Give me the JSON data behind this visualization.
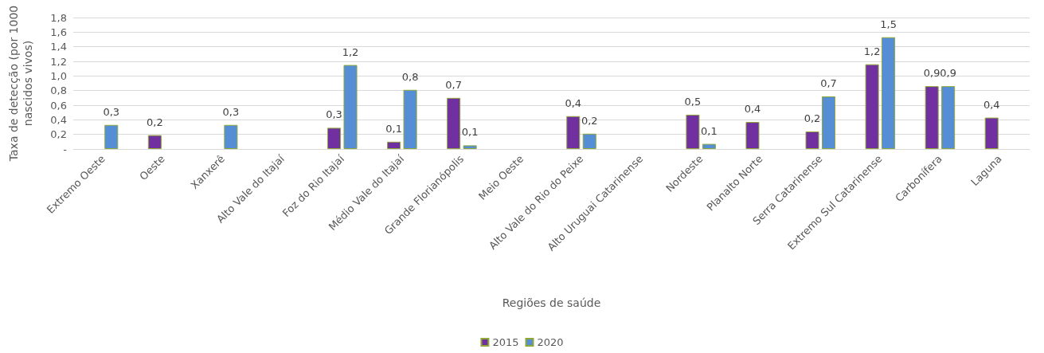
{
  "chart_data": {
    "type": "bar",
    "categories": [
      "Extremo Oeste",
      "Oeste",
      "Xanxerê",
      "Alto Vale do Itajaí",
      "Foz do Rio Itajaí",
      "Médio Vale do Itajaí",
      "Grande Florianópolis",
      "Meio Oeste",
      "Alto Vale do Rio do Peixe",
      "Alto Uruguai Catarinense",
      "Nordeste",
      "Planalto Norte",
      "Serra Catarinense",
      "Extremo Sul Catarinense",
      "Carbonífera",
      "Laguna"
    ],
    "series": [
      {
        "name": "2015",
        "color": "#7030a0",
        "values": [
          null,
          0.19,
          null,
          null,
          0.29,
          0.1,
          0.7,
          null,
          0.45,
          null,
          0.47,
          0.37,
          0.24,
          1.16,
          0.86,
          0.43
        ],
        "value_labels": [
          null,
          "0,2",
          null,
          null,
          "0,3",
          "0,1",
          "0,7",
          null,
          "0,4",
          null,
          "0,5",
          "0,4",
          "0,2",
          "1,2",
          "0,9",
          "0,4"
        ]
      },
      {
        "name": "2020",
        "color": "#558ed5",
        "values": [
          0.33,
          null,
          0.33,
          null,
          1.15,
          0.81,
          0.05,
          null,
          0.21,
          null,
          0.07,
          null,
          0.72,
          1.53,
          0.86,
          null
        ],
        "value_labels": [
          "0,3",
          null,
          "0,3",
          null,
          "1,2",
          "0,8",
          "0,1",
          null,
          "0,2",
          null,
          "0,1",
          null,
          "0,7",
          "1,5",
          "0,9",
          null
        ]
      }
    ],
    "xlabel": "Regiões de saúde",
    "ylabel": "Taxa de detecção (por 1000 nascidos vivos)",
    "ylim": [
      0,
      1.8
    ],
    "yticks": [
      {
        "value": 0,
        "label": "-"
      },
      {
        "value": 0.2,
        "label": "0,2"
      },
      {
        "value": 0.4,
        "label": "0,4"
      },
      {
        "value": 0.6,
        "label": "0,6"
      },
      {
        "value": 0.8,
        "label": "0,8"
      },
      {
        "value": 1.0,
        "label": "1,0"
      },
      {
        "value": 1.2,
        "label": "1,2"
      },
      {
        "value": 1.4,
        "label": "1,4"
      },
      {
        "value": 1.6,
        "label": "1,6"
      },
      {
        "value": 1.8,
        "label": "1,8"
      }
    ],
    "grid": "y",
    "legend": "bottom"
  }
}
